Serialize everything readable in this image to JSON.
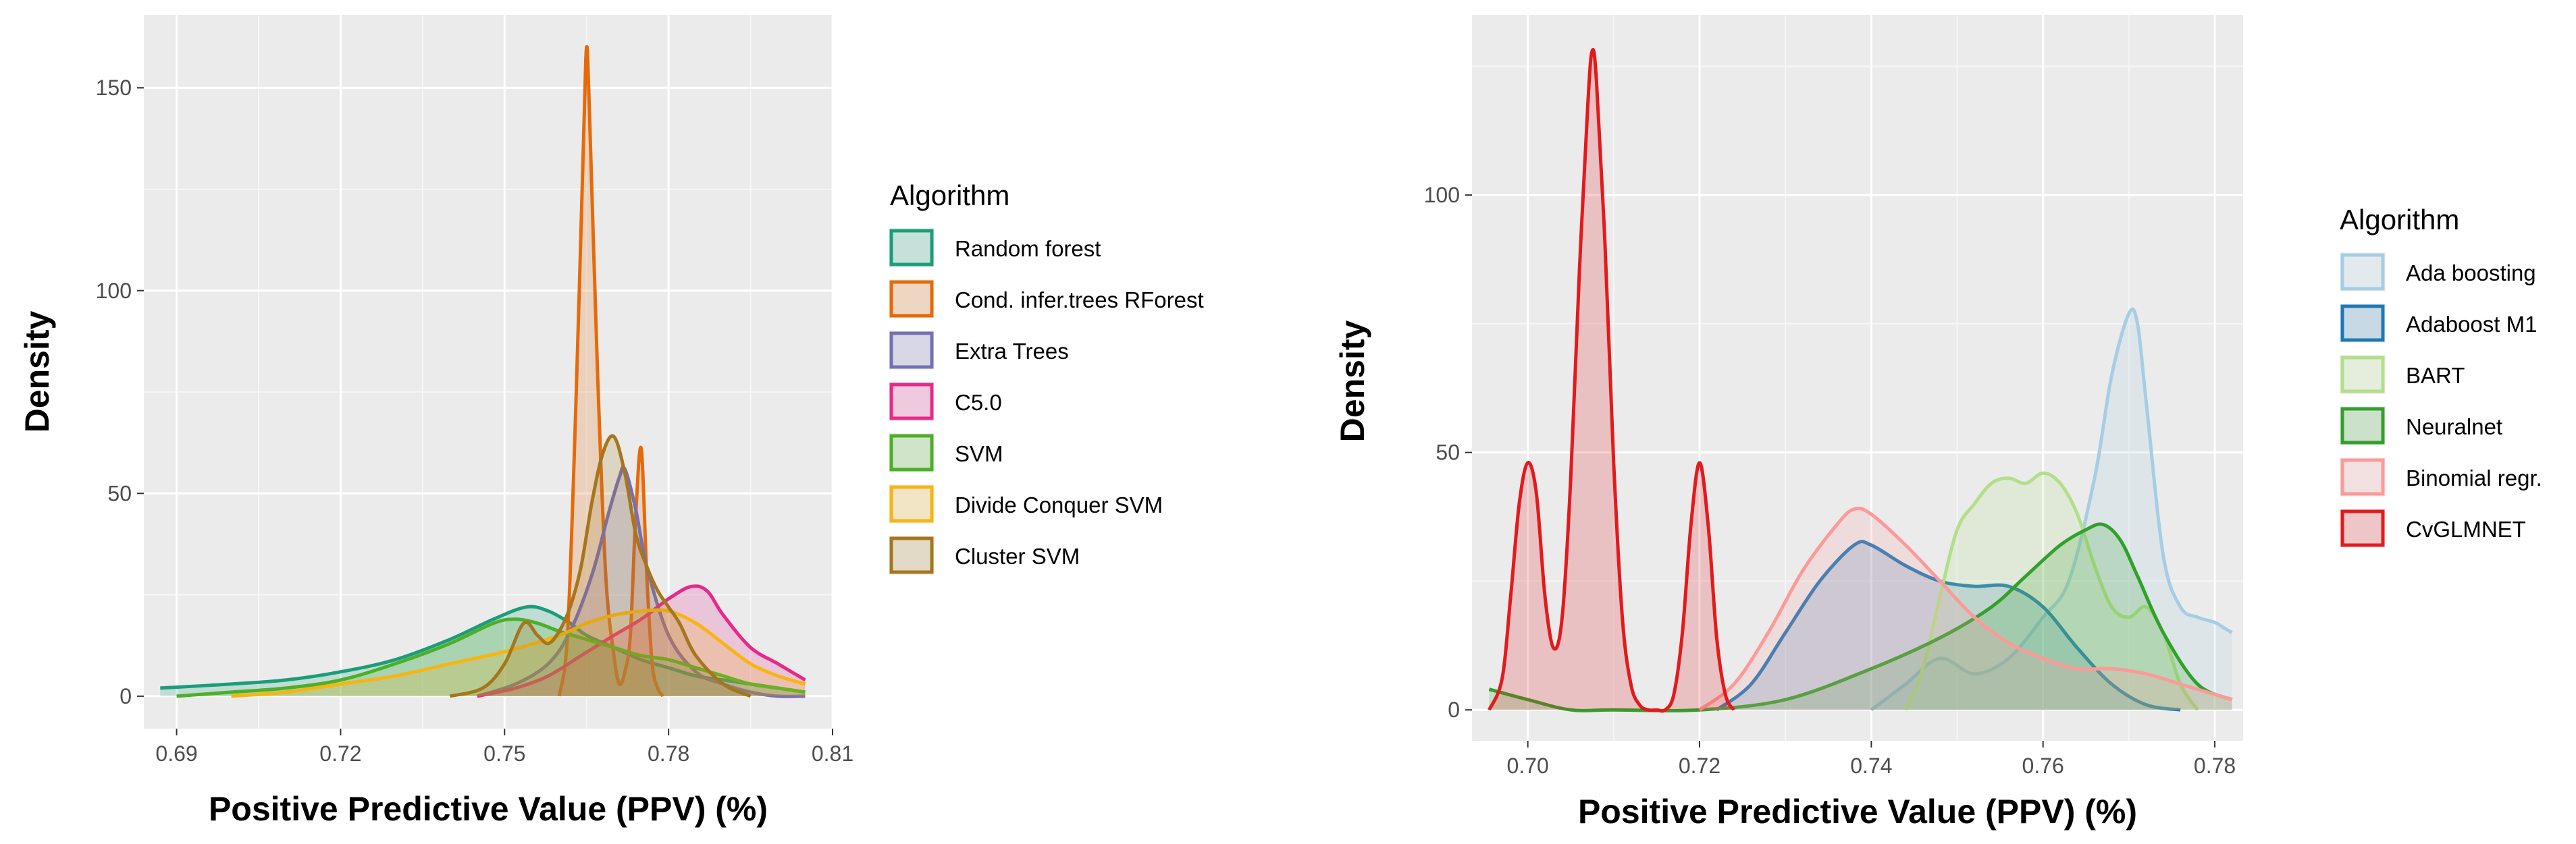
{
  "chart_data": [
    {
      "type": "area",
      "panel": "left",
      "xlabel": "Positive Predictive Value (PPV) (%)",
      "ylabel": "Density",
      "xlim": [
        0.684,
        0.81
      ],
      "ylim": [
        -8,
        168
      ],
      "x_ticks": [
        0.69,
        0.72,
        0.75,
        0.78,
        0.81
      ],
      "x_tick_labels": [
        "0.69",
        "0.72",
        "0.75",
        "0.78",
        "0.81"
      ],
      "y_ticks": [
        0,
        50,
        100,
        150
      ],
      "y_tick_labels": [
        "0",
        "50",
        "100",
        "150"
      ],
      "grid": true,
      "legend_title": "Algorithm",
      "legend_position": "right",
      "series": [
        {
          "name": "Random forest",
          "color": "#1b9e77",
          "x": [
            0.687,
            0.7,
            0.71,
            0.72,
            0.73,
            0.74,
            0.748,
            0.754,
            0.758,
            0.762,
            0.765,
            0.77,
            0.775,
            0.78,
            0.785,
            0.79,
            0.795,
            0.8,
            0.805
          ],
          "y": [
            2,
            3,
            4,
            6,
            9,
            14,
            19,
            22,
            21,
            18,
            15,
            12,
            9,
            7,
            5,
            4,
            3,
            2,
            1
          ]
        },
        {
          "name": "Cond. infer.trees RForest",
          "color": "#e66a0a",
          "x": [
            0.76,
            0.7615,
            0.763,
            0.7645,
            0.765,
            0.7655,
            0.767,
            0.7685,
            0.77,
            0.771,
            0.772,
            0.773,
            0.774,
            0.775,
            0.776,
            0.777,
            0.778,
            0.779
          ],
          "y": [
            0,
            15,
            70,
            140,
            160,
            145,
            80,
            30,
            10,
            3,
            6,
            15,
            45,
            61,
            30,
            8,
            2,
            0
          ]
        },
        {
          "name": "Extra Trees",
          "color": "#7570b3",
          "x": [
            0.745,
            0.752,
            0.758,
            0.762,
            0.766,
            0.769,
            0.771,
            0.772,
            0.774,
            0.776,
            0.78,
            0.785,
            0.79,
            0.795,
            0.8,
            0.805
          ],
          "y": [
            0,
            3,
            8,
            16,
            30,
            45,
            54,
            56,
            46,
            32,
            15,
            6,
            3,
            1,
            0,
            0
          ]
        },
        {
          "name": "C5.0",
          "color": "#e7298a",
          "x": [
            0.745,
            0.752,
            0.758,
            0.764,
            0.77,
            0.775,
            0.78,
            0.784,
            0.787,
            0.79,
            0.795,
            0.8,
            0.805
          ],
          "y": [
            0,
            2,
            5,
            10,
            15,
            19,
            24,
            27,
            26,
            20,
            12,
            8,
            4
          ]
        },
        {
          "name": "SVM",
          "color": "#4daf28",
          "x": [
            0.69,
            0.7,
            0.71,
            0.72,
            0.73,
            0.74,
            0.748,
            0.752,
            0.756,
            0.76,
            0.765,
            0.77,
            0.775,
            0.78,
            0.785,
            0.79,
            0.795,
            0.8,
            0.805
          ],
          "y": [
            0,
            1,
            2,
            4,
            8,
            13,
            18,
            19,
            18,
            16,
            14,
            12,
            10,
            9,
            7,
            5,
            3,
            2,
            1
          ]
        },
        {
          "name": "Divide Conquer SVM",
          "color": "#f7b512",
          "x": [
            0.7,
            0.71,
            0.72,
            0.73,
            0.74,
            0.75,
            0.76,
            0.765,
            0.77,
            0.775,
            0.78,
            0.785,
            0.79,
            0.795,
            0.8,
            0.805
          ],
          "y": [
            0,
            1,
            3,
            5,
            8,
            11,
            15,
            18,
            20,
            21,
            21,
            18,
            13,
            8,
            5,
            3
          ]
        },
        {
          "name": "Cluster SVM",
          "color": "#a6761d",
          "x": [
            0.74,
            0.746,
            0.75,
            0.7535,
            0.756,
            0.758,
            0.76,
            0.762,
            0.764,
            0.766,
            0.768,
            0.77,
            0.772,
            0.774,
            0.776,
            0.778,
            0.78,
            0.782,
            0.785,
            0.79,
            0.795
          ],
          "y": [
            0,
            2,
            8,
            18,
            15,
            13,
            16,
            22,
            32,
            48,
            60,
            64,
            55,
            40,
            32,
            26,
            22,
            18,
            10,
            3,
            0
          ]
        }
      ]
    },
    {
      "type": "area",
      "panel": "right",
      "xlabel": "Positive Predictive Value (PPV) (%)",
      "ylabel": "Density",
      "xlim": [
        0.6935,
        0.7833
      ],
      "ylim": [
        -6,
        135
      ],
      "x_ticks": [
        0.7,
        0.72,
        0.74,
        0.76,
        0.78
      ],
      "x_tick_labels": [
        "0.70",
        "0.72",
        "0.74",
        "0.76",
        "0.78"
      ],
      "y_ticks": [
        0,
        50,
        100
      ],
      "y_tick_labels": [
        "0",
        "50",
        "100"
      ],
      "grid": true,
      "legend_title": "Algorithm",
      "legend_position": "right",
      "series": [
        {
          "name": "Ada boosting",
          "color": "#a6cee3",
          "x": [
            0.74,
            0.744,
            0.748,
            0.752,
            0.756,
            0.76,
            0.763,
            0.766,
            0.768,
            0.77,
            0.771,
            0.772,
            0.774,
            0.776,
            0.778,
            0.78,
            0.781,
            0.782
          ],
          "y": [
            0,
            5,
            10,
            7,
            10,
            18,
            25,
            45,
            65,
            77,
            75,
            60,
            30,
            20,
            18,
            17,
            16,
            15
          ]
        },
        {
          "name": "Adaboost M1",
          "color": "#1f78b4",
          "x": [
            0.722,
            0.726,
            0.73,
            0.734,
            0.738,
            0.74,
            0.744,
            0.748,
            0.752,
            0.756,
            0.76,
            0.764,
            0.768,
            0.772,
            0.776
          ],
          "y": [
            0,
            5,
            15,
            25,
            32,
            32,
            28,
            25,
            24,
            24,
            20,
            12,
            5,
            1,
            0
          ]
        },
        {
          "name": "BART",
          "color": "#b2df8a",
          "x": [
            0.744,
            0.746,
            0.748,
            0.75,
            0.752,
            0.754,
            0.756,
            0.758,
            0.76,
            0.762,
            0.764,
            0.766,
            0.768,
            0.77,
            0.772,
            0.774,
            0.776,
            0.778
          ],
          "y": [
            0,
            8,
            22,
            35,
            40,
            44,
            45,
            44,
            46,
            44,
            38,
            28,
            20,
            18,
            20,
            15,
            5,
            0
          ]
        },
        {
          "name": "Neuralnet",
          "color": "#33a02c",
          "x": [
            0.6955,
            0.7,
            0.705,
            0.71,
            0.72,
            0.73,
            0.74,
            0.748,
            0.754,
            0.758,
            0.762,
            0.765,
            0.767,
            0.769,
            0.771,
            0.774,
            0.778,
            0.782
          ],
          "y": [
            4,
            2,
            0,
            0,
            0,
            2,
            8,
            14,
            20,
            26,
            32,
            35,
            36,
            33,
            26,
            15,
            5,
            2
          ]
        },
        {
          "name": "Binomial regr.",
          "color": "#fb9a99",
          "x": [
            0.72,
            0.724,
            0.728,
            0.732,
            0.736,
            0.738,
            0.74,
            0.744,
            0.748,
            0.752,
            0.756,
            0.76,
            0.764,
            0.768,
            0.772,
            0.776,
            0.78,
            0.782
          ],
          "y": [
            0,
            5,
            15,
            27,
            36,
            39,
            38,
            32,
            25,
            18,
            13,
            10,
            8,
            8,
            7,
            5,
            3,
            2
          ]
        },
        {
          "name": "CvGLMNET",
          "color": "#e31a1c",
          "x": [
            0.6955,
            0.697,
            0.698,
            0.699,
            0.7,
            0.701,
            0.702,
            0.703,
            0.704,
            0.705,
            0.706,
            0.707,
            0.7075,
            0.708,
            0.709,
            0.71,
            0.711,
            0.712,
            0.713,
            0.714,
            0.715,
            0.716,
            0.717,
            0.718,
            0.719,
            0.72,
            0.721,
            0.722,
            0.723,
            0.724
          ],
          "y": [
            0,
            6,
            22,
            40,
            48,
            42,
            22,
            12,
            18,
            45,
            85,
            118,
            128,
            122,
            90,
            48,
            18,
            5,
            1,
            0,
            0,
            0,
            3,
            15,
            36,
            48,
            36,
            14,
            3,
            0
          ]
        }
      ]
    }
  ]
}
